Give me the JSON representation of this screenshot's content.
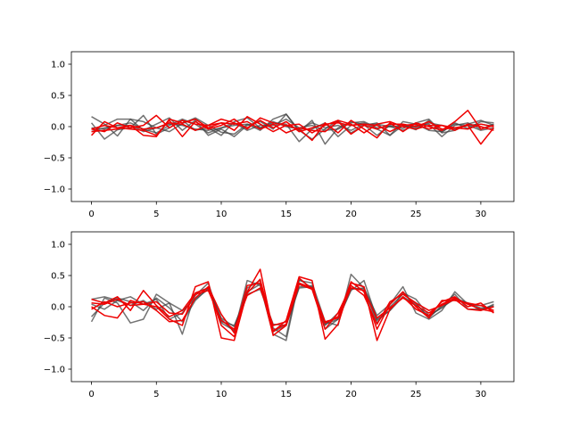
{
  "chart_data": [
    {
      "type": "line",
      "xlim": [
        -1.55,
        32.55
      ],
      "ylim": [
        -1.2,
        1.2
      ],
      "xticks": [
        0,
        5,
        10,
        15,
        20,
        25,
        30
      ],
      "yticks": [
        -1.0,
        -0.5,
        0.0,
        0.5,
        1.0
      ],
      "xtick_labels": [
        "0",
        "5",
        "10",
        "15",
        "20",
        "25",
        "30"
      ],
      "ytick_labels": [
        "−1.0",
        "−0.5",
        "0.0",
        "0.5",
        "1.0"
      ],
      "colors": {
        "reference": "#444444",
        "reconstruction": "#ee0000"
      },
      "series": [
        {
          "group": "reference",
          "values": [
            0.16,
            0.04,
            -0.15,
            0.12,
            0.08,
            -0.02,
            -0.08,
            0.05,
            0.14,
            0.02,
            -0.09,
            -0.12,
            0.04,
            -0.06,
            0.12,
            0.2,
            -0.08,
            0.1,
            -0.28,
            -0.02,
            0.08,
            0.03,
            -0.14,
            0.02,
            -0.03,
            0.06,
            0.12,
            -0.09,
            0.06,
            -0.03,
            0.08,
            0.06
          ]
        },
        {
          "group": "reference",
          "values": [
            0.06,
            -0.2,
            -0.05,
            -0.02,
            0.18,
            -0.12,
            -0.02,
            0.1,
            -0.06,
            -0.02,
            -0.14,
            0.08,
            0.14,
            -0.02,
            0.06,
            0.04,
            -0.24,
            -0.04,
            0.06,
            -0.16,
            0.02,
            0.06,
            -0.04,
            -0.14,
            0.02,
            -0.05,
            0.1,
            -0.1,
            -0.06,
            0.04,
            0.1,
            0.02
          ]
        },
        {
          "group": "reference",
          "values": [
            -0.04,
            0.02,
            0.12,
            0.12,
            -0.06,
            0.04,
            0.14,
            -0.06,
            0.1,
            -0.14,
            -0.04,
            -0.16,
            0.02,
            0.08,
            -0.04,
            0.2,
            -0.06,
            -0.2,
            -0.04,
            0.1,
            -0.1,
            0.02,
            0.06,
            -0.14,
            0.08,
            0.04,
            -0.06,
            -0.08,
            0.04,
            0.02,
            -0.06,
            -0.02
          ]
        },
        {
          "group": "reference",
          "values": [
            -0.08,
            -0.02,
            0.02,
            0.06,
            -0.04,
            -0.1,
            0.02,
            0.12,
            0.04,
            -0.1,
            -0.02,
            0.06,
            -0.06,
            0.02,
            0.02,
            0.12,
            -0.02,
            0.02,
            -0.06,
            -0.04,
            0.06,
            0.08,
            -0.02,
            0.0,
            -0.06,
            0.02,
            0.04,
            -0.16,
            0.02,
            0.06,
            -0.04,
            0.04
          ]
        },
        {
          "group": "reference",
          "values": [
            -0.02,
            -0.04,
            0.02,
            0.02,
            -0.08,
            -0.02,
            0.04,
            0.02,
            -0.04,
            -0.06,
            -0.02,
            0.02,
            0.04,
            -0.02,
            0.08,
            0.0,
            -0.04,
            0.06,
            -0.02,
            0.02,
            -0.06,
            0.04,
            0.04,
            0.0,
            0.02,
            -0.02,
            0.06,
            0.02,
            -0.04,
            0.02,
            0.04,
            0.0
          ]
        },
        {
          "group": "reconstruction",
          "values": [
            -0.14,
            0.08,
            -0.02,
            -0.04,
            -0.06,
            -0.14,
            0.1,
            -0.16,
            0.08,
            -0.04,
            0.02,
            0.12,
            -0.04,
            0.14,
            0.06,
            0.02,
            -0.04,
            -0.22,
            0.06,
            -0.1,
            0.1,
            -0.04,
            -0.18,
            0.06,
            -0.08,
            0.06,
            0.0,
            -0.06,
            0.08,
            0.26,
            -0.04,
            0.02
          ]
        },
        {
          "group": "reconstruction",
          "values": [
            -0.04,
            -0.08,
            0.06,
            -0.02,
            0.02,
            0.18,
            -0.02,
            0.1,
            0.04,
            0.02,
            0.06,
            -0.06,
            0.16,
            0.04,
            -0.08,
            0.02,
            0.04,
            -0.1,
            0.02,
            0.1,
            0.04,
            -0.1,
            0.04,
            0.08,
            0.0,
            -0.04,
            0.02,
            0.02,
            -0.06,
            0.04,
            0.0,
            -0.06
          ]
        },
        {
          "group": "reconstruction",
          "values": [
            -0.08,
            -0.06,
            -0.04,
            0.02,
            -0.14,
            -0.16,
            0.12,
            0.06,
            0.12,
            -0.02,
            0.06,
            0.04,
            0.08,
            -0.04,
            0.04,
            -0.1,
            -0.02,
            -0.06,
            -0.08,
            0.08,
            -0.12,
            0.02,
            -0.04,
            0.04,
            0.04,
            0.0,
            0.08,
            -0.04,
            -0.02,
            0.02,
            -0.28,
            -0.02
          ]
        },
        {
          "group": "reconstruction",
          "values": [
            -0.04,
            0.02,
            -0.02,
            0.02,
            -0.04,
            -0.02,
            0.06,
            0.04,
            -0.06,
            0.02,
            0.12,
            0.06,
            -0.02,
            0.1,
            -0.02,
            0.08,
            -0.08,
            -0.02,
            0.04,
            0.06,
            0.02,
            0.04,
            0.02,
            -0.08,
            0.02,
            0.04,
            -0.04,
            0.02,
            -0.02,
            -0.04,
            0.04,
            0.0
          ]
        }
      ]
    },
    {
      "type": "line",
      "xlim": [
        -1.55,
        32.55
      ],
      "ylim": [
        -1.2,
        1.2
      ],
      "xticks": [
        0,
        5,
        10,
        15,
        20,
        25,
        30
      ],
      "yticks": [
        -1.0,
        -0.5,
        0.0,
        0.5,
        1.0
      ],
      "xtick_labels": [
        "0",
        "5",
        "10",
        "15",
        "20",
        "25",
        "30"
      ],
      "ytick_labels": [
        "−1.0",
        "−0.5",
        "0.0",
        "0.5",
        "1.0"
      ],
      "colors": {
        "reference": "#444444",
        "reconstruction": "#ee0000"
      },
      "series": [
        {
          "group": "reference",
          "values": [
            -0.24,
            0.14,
            0.06,
            -0.26,
            -0.2,
            0.2,
            0.06,
            -0.44,
            0.22,
            0.3,
            -0.2,
            -0.4,
            0.42,
            0.34,
            -0.44,
            -0.54,
            0.42,
            0.38,
            -0.24,
            -0.3,
            0.52,
            0.3,
            -0.14,
            0.04,
            0.32,
            -0.1,
            -0.2,
            -0.06,
            0.24,
            0.04,
            0.02,
            0.08
          ]
        },
        {
          "group": "reference",
          "values": [
            0.12,
            0.16,
            0.1,
            0.16,
            0.04,
            0.12,
            -0.2,
            -0.1,
            0.18,
            0.38,
            -0.26,
            -0.38,
            0.3,
            0.42,
            -0.34,
            -0.48,
            0.44,
            0.3,
            -0.36,
            -0.2,
            0.26,
            0.42,
            -0.2,
            -0.06,
            0.22,
            0.12,
            -0.14,
            -0.02,
            0.14,
            0.06,
            -0.06,
            0.04
          ]
        },
        {
          "group": "reference",
          "values": [
            -0.16,
            0.06,
            0.14,
            0.08,
            -0.06,
            0.14,
            -0.02,
            -0.24,
            0.1,
            0.3,
            -0.18,
            -0.32,
            0.24,
            0.36,
            -0.4,
            -0.3,
            0.32,
            0.34,
            -0.3,
            -0.1,
            0.3,
            0.28,
            -0.26,
            0.0,
            0.2,
            0.06,
            -0.18,
            0.02,
            0.2,
            -0.04,
            -0.04,
            0.02
          ]
        },
        {
          "group": "reference",
          "values": [
            0.04,
            -0.04,
            0.1,
            0.02,
            0.1,
            -0.04,
            0.06,
            -0.06,
            0.12,
            0.28,
            -0.24,
            -0.3,
            0.2,
            0.28,
            -0.28,
            -0.3,
            0.3,
            0.32,
            -0.28,
            -0.2,
            0.28,
            0.3,
            -0.22,
            -0.06,
            0.16,
            0.04,
            -0.16,
            0.0,
            0.12,
            0.06,
            -0.02,
            0.0
          ]
        },
        {
          "group": "reconstruction",
          "values": [
            0.0,
            -0.14,
            -0.18,
            0.1,
            0.04,
            0.0,
            -0.2,
            -0.3,
            0.32,
            0.4,
            -0.5,
            -0.54,
            0.24,
            0.6,
            -0.4,
            -0.22,
            0.48,
            0.42,
            -0.52,
            -0.28,
            0.38,
            0.32,
            -0.54,
            -0.04,
            0.16,
            -0.04,
            -0.14,
            0.08,
            0.16,
            0.0,
            0.06,
            -0.1
          ]
        },
        {
          "group": "reconstruction",
          "values": [
            0.12,
            0.06,
            0.16,
            -0.06,
            0.26,
            0.02,
            -0.16,
            -0.06,
            0.22,
            0.3,
            -0.3,
            -0.48,
            0.22,
            0.44,
            -0.38,
            -0.28,
            0.46,
            0.28,
            -0.26,
            -0.16,
            0.4,
            0.24,
            -0.36,
            0.04,
            0.24,
            0.0,
            -0.18,
            0.1,
            0.1,
            0.06,
            0.02,
            -0.06
          ]
        },
        {
          "group": "reconstruction",
          "values": [
            -0.04,
            0.08,
            0.0,
            0.06,
            0.08,
            -0.06,
            -0.24,
            -0.22,
            0.14,
            0.32,
            -0.12,
            -0.42,
            0.34,
            0.38,
            -0.46,
            -0.3,
            0.36,
            0.28,
            -0.36,
            -0.1,
            0.34,
            0.18,
            -0.28,
            0.08,
            0.2,
            0.06,
            -0.06,
            0.02,
            0.12,
            -0.04,
            -0.06,
            0.0
          ]
        },
        {
          "group": "reconstruction",
          "values": [
            0.06,
            0.04,
            0.12,
            0.02,
            0.04,
            0.08,
            -0.1,
            -0.12,
            0.2,
            0.26,
            -0.22,
            -0.36,
            0.18,
            0.3,
            -0.3,
            -0.24,
            0.38,
            0.3,
            -0.24,
            -0.18,
            0.3,
            0.26,
            -0.18,
            -0.02,
            0.14,
            0.02,
            -0.1,
            0.04,
            0.14,
            0.04,
            -0.04,
            -0.08
          ]
        }
      ]
    }
  ]
}
